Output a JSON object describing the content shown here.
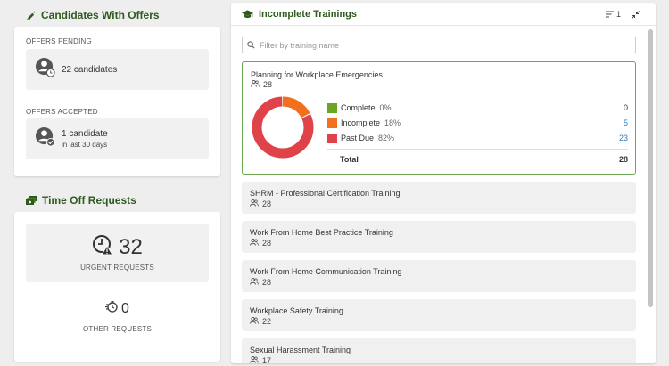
{
  "candidates": {
    "title": "Candidates With Offers",
    "pending_label": "OFFERS PENDING",
    "pending_text": "22 candidates",
    "accepted_label": "OFFERS ACCEPTED",
    "accepted_text": "1 candidate",
    "accepted_sub": "in last 30 days"
  },
  "time_off": {
    "title": "Time Off Requests",
    "urgent_count": "32",
    "urgent_label": "URGENT REQUESTS",
    "other_count": "0",
    "other_label": "OTHER REQUESTS"
  },
  "trainings": {
    "title": "Incomplete Trainings",
    "sort_count": "1",
    "filter_placeholder": "Filter by training name",
    "expanded": {
      "name": "Planning for Workplace Emergencies",
      "count": "28",
      "legend": [
        {
          "label": "Complete",
          "pct": "0%",
          "value": "0",
          "color": "#6aa521",
          "link": false
        },
        {
          "label": "Incomplete",
          "pct": "18%",
          "value": "5",
          "color": "#f07020",
          "link": true
        },
        {
          "label": "Past Due",
          "pct": "82%",
          "value": "23",
          "color": "#e0424a",
          "link": true
        }
      ],
      "total_label": "Total",
      "total_value": "28"
    },
    "items": [
      {
        "name": "SHRM - Professional Certification Training",
        "count": "28"
      },
      {
        "name": "Work From Home Best Practice Training",
        "count": "28"
      },
      {
        "name": "Work From Home Communication Training",
        "count": "28"
      },
      {
        "name": "Workplace Safety Training",
        "count": "22"
      },
      {
        "name": "Sexual Harassment Training",
        "count": "17"
      }
    ]
  },
  "colors": {
    "accent": "#2f5a1f",
    "complete": "#6aa521",
    "incomplete": "#f07020",
    "past_due": "#e0424a",
    "link": "#2e7bc4"
  },
  "icons": [
    "edit-check-icon",
    "avatar-clock-icon",
    "avatar-check-icon",
    "money-icon",
    "clock-alert-icon",
    "timer-icon",
    "graduation-cap-icon",
    "sort-list-icon",
    "collapse-icon",
    "search-icon",
    "people-icon"
  ]
}
